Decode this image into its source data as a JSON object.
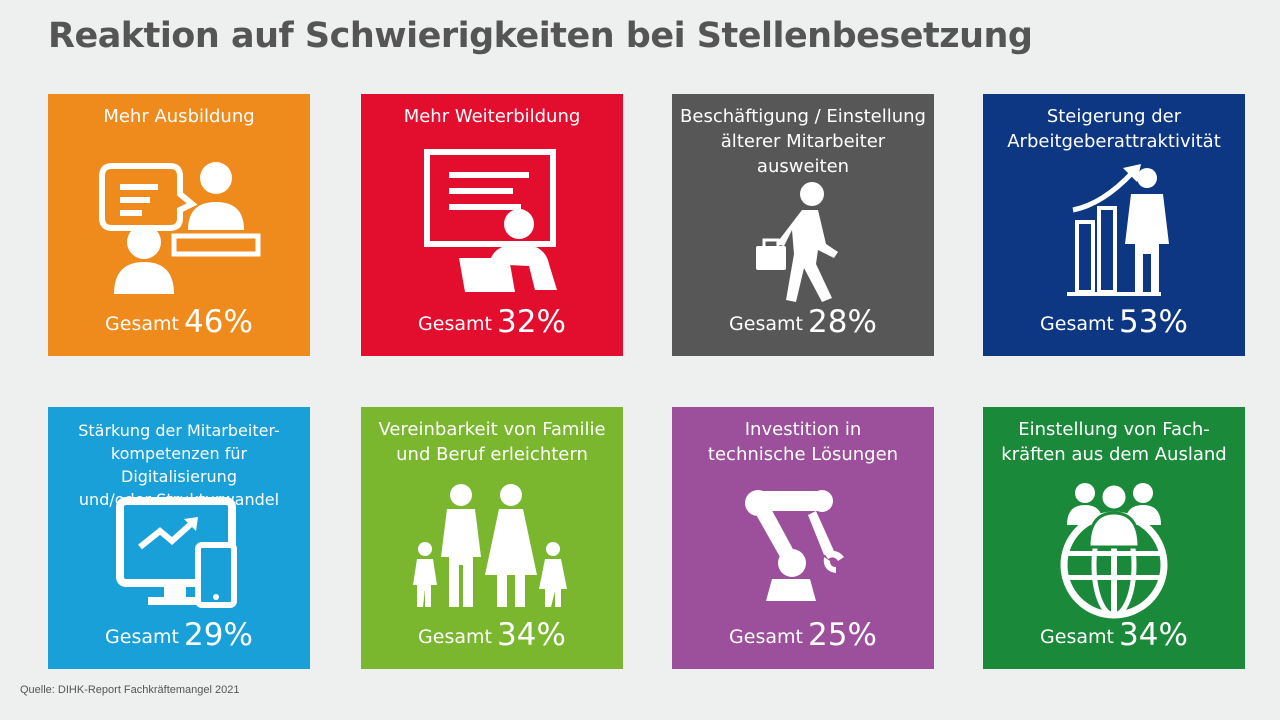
{
  "title": "Reaktion auf Schwierigkeiten bei Stellenbesetzung",
  "source": "Quelle: DIHK-Report Fachkräftemangel 2021",
  "total_label": "Gesamt",
  "chart_data": {
    "type": "table",
    "title": "Reaktion auf Schwierigkeiten bei Stellenbesetzung",
    "categories": [
      "Mehr Ausbildung",
      "Mehr Weiterbildung",
      "Beschäftigung / Einstellung älterer Mitarbeiter ausweiten",
      "Steigerung der Arbeitgeberattraktivität",
      "Stärkung der Mitarbeiter-kompetenzen für Digitalisierung und/oder Strukturwandel",
      "Vereinbarkeit von Familie und Beruf erleichtern",
      "Investition in technische Lösungen",
      "Einstellung von Fach-kräften aus dem Ausland"
    ],
    "values": [
      46,
      32,
      28,
      53,
      29,
      34,
      25,
      34
    ],
    "unit": "%"
  },
  "tiles": [
    {
      "label": "Mehr Ausbildung",
      "value": "46%",
      "color": "#ef8a1c",
      "icon": "training-icon"
    },
    {
      "label": "Mehr Weiterbildung",
      "value": "32%",
      "color": "#e30d2e",
      "icon": "presentation-icon"
    },
    {
      "label": "Beschäftigung / Einstellung\nälterer Mitarbeiter\nausweiten",
      "value": "28%",
      "color": "#575757",
      "icon": "walking-person-icon"
    },
    {
      "label": "Steigerung der\nArbeitgeberattraktivität",
      "value": "53%",
      "color": "#0d3782",
      "icon": "growth-person-icon"
    },
    {
      "label": "Stärkung der Mitarbeiter-\nkompetenzen für Digitalisierung\nund/oder Strukturwandel",
      "value": "29%",
      "color": "#1aa0d9",
      "icon": "devices-icon"
    },
    {
      "label": "Vereinbarkeit von Familie\nund Beruf erleichtern",
      "value": "34%",
      "color": "#7ab72e",
      "icon": "family-icon"
    },
    {
      "label": "Investition in\ntechnische Lösungen",
      "value": "25%",
      "color": "#9c4f9a",
      "icon": "robot-arm-icon"
    },
    {
      "label": "Einstellung von Fach-\nkräften aus dem Ausland",
      "value": "34%",
      "color": "#1a8a3a",
      "icon": "globe-people-icon"
    }
  ]
}
